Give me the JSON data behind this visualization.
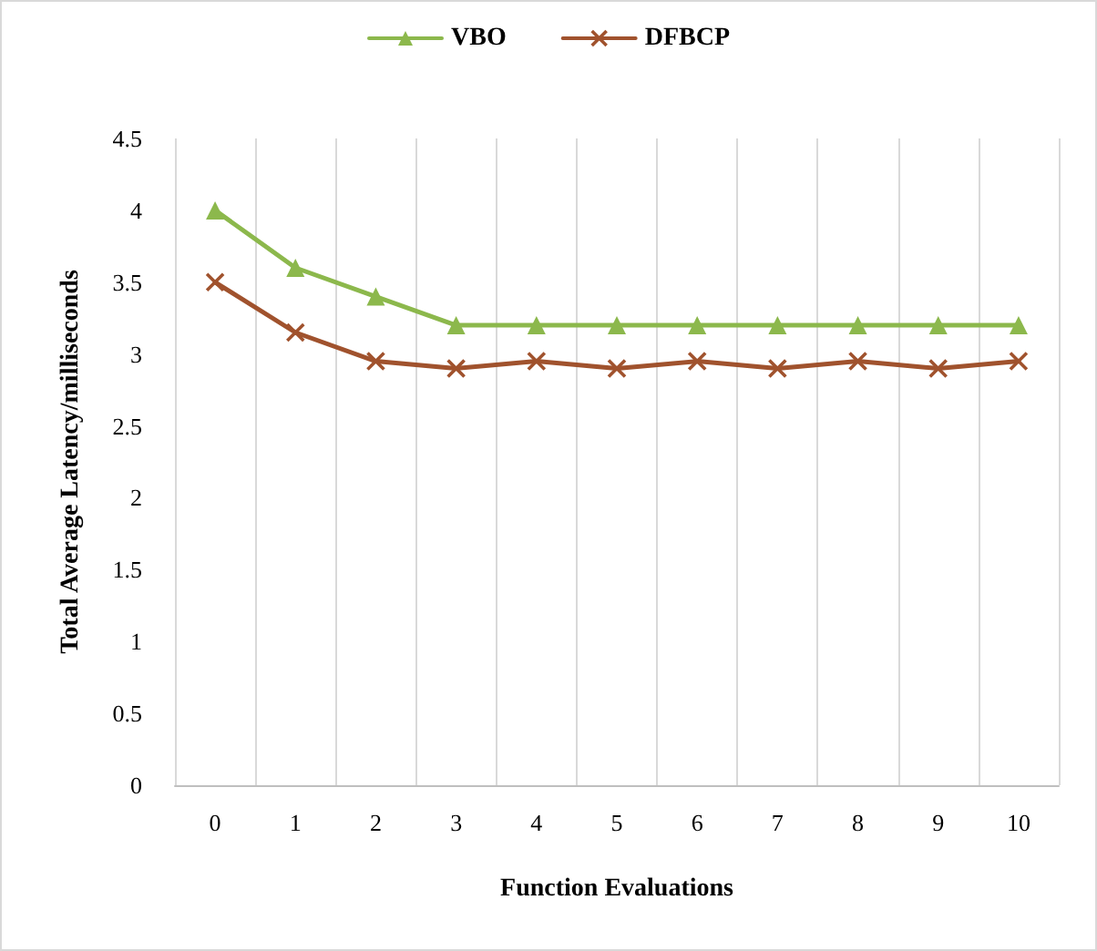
{
  "chart_data": {
    "type": "line",
    "xlabel": "Function Evaluations",
    "ylabel": "Total Average Latency/milliseconds",
    "categories": [
      "0",
      "1",
      "2",
      "3",
      "4",
      "5",
      "6",
      "7",
      "8",
      "9",
      "10"
    ],
    "series": [
      {
        "name": "VBO",
        "color": "#8cb84c",
        "marker": "triangle",
        "values": [
          4,
          3.6,
          3.4,
          3.2,
          3.2,
          3.2,
          3.2,
          3.2,
          3.2,
          3.2,
          3.2
        ]
      },
      {
        "name": "DFBCP",
        "color": "#a0522d",
        "marker": "cross",
        "values": [
          3.5,
          3.15,
          2.95,
          2.9,
          2.95,
          2.9,
          2.95,
          2.9,
          2.95,
          2.9,
          2.95
        ]
      }
    ],
    "ylim": [
      0,
      4.5
    ],
    "yticks": [
      0,
      0.5,
      1,
      1.5,
      2,
      2.5,
      3,
      3.5,
      4,
      4.5
    ],
    "grid": "x",
    "legend": "top",
    "line_style": "solid"
  }
}
